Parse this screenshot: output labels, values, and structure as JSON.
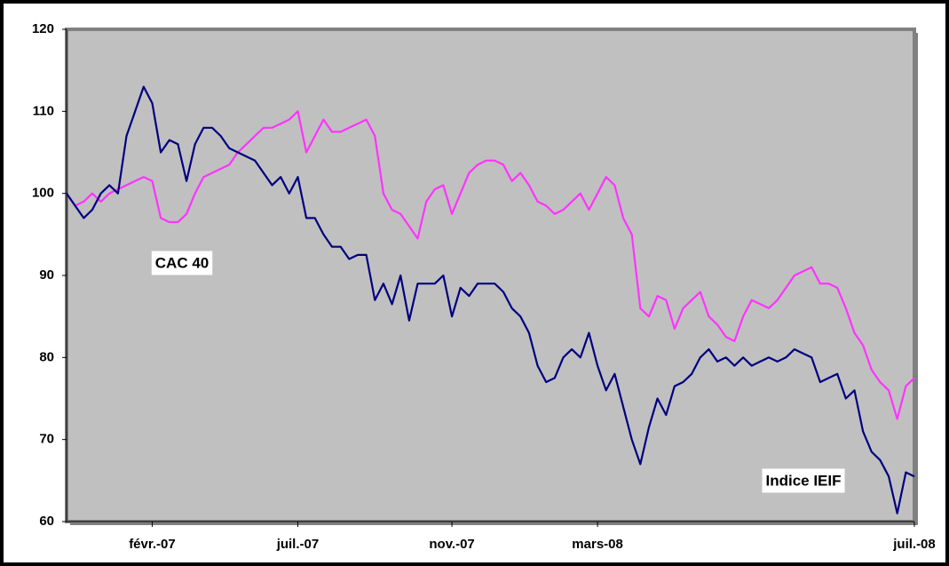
{
  "chart_data": {
    "type": "line",
    "categories": [
      null,
      null,
      null,
      null,
      null,
      null,
      null,
      null,
      null,
      null,
      "févr.-07",
      null,
      null,
      null,
      null,
      null,
      null,
      null,
      null,
      null,
      null,
      null,
      null,
      null,
      null,
      null,
      null,
      "juil.-07",
      null,
      null,
      null,
      null,
      null,
      null,
      null,
      null,
      null,
      null,
      null,
      null,
      null,
      null,
      null,
      null,
      null,
      "nov.-07",
      null,
      null,
      null,
      null,
      null,
      null,
      null,
      null,
      null,
      null,
      null,
      null,
      null,
      null,
      null,
      null,
      "mars-08",
      null,
      null,
      null,
      null,
      null,
      null,
      null,
      null,
      null,
      null,
      null,
      null,
      null,
      null,
      null,
      null,
      null,
      null,
      null,
      null,
      null,
      null,
      null,
      null,
      null,
      null,
      null,
      null,
      null,
      null,
      null,
      null,
      null,
      null,
      null,
      null,
      "juil.-08"
    ],
    "series": [
      {
        "name": "CAC 40",
        "color": "#ff33ff",
        "values": [
          100,
          98.5,
          99,
          100,
          99,
          100,
          100.5,
          101,
          101.5,
          102,
          101.5,
          97,
          96.5,
          96.5,
          97.5,
          100,
          102,
          102.5,
          103,
          103.5,
          105,
          106,
          107,
          108,
          108,
          108.5,
          109,
          110,
          105,
          107,
          109,
          107.5,
          107.5,
          108,
          108.5,
          109,
          107,
          100,
          98,
          97.5,
          96,
          94.5,
          99,
          100.5,
          101,
          97.5,
          100,
          102.5,
          103.5,
          104,
          104,
          103.5,
          101.5,
          102.5,
          101,
          99,
          98.5,
          97.5,
          98,
          99,
          100,
          98,
          100,
          102,
          101,
          97,
          95,
          86,
          85,
          87.5,
          87,
          83.5,
          86,
          87,
          88,
          85,
          84,
          82.5,
          82,
          85,
          87,
          86.5,
          86,
          87,
          88.5,
          90,
          90.5,
          91,
          89,
          89,
          88.5,
          86,
          83,
          81.5,
          78.5,
          77,
          76,
          72.5,
          76.5,
          77.5
        ]
      },
      {
        "name": "Indice IEIF",
        "color": "#000080",
        "values": [
          100,
          98.5,
          97,
          98,
          100,
          101,
          100,
          107,
          110,
          113,
          111,
          105,
          106.5,
          106,
          101.5,
          106,
          108,
          108,
          107,
          105.5,
          105,
          104.5,
          104,
          102.5,
          101,
          102,
          100,
          102,
          97,
          97,
          95,
          93.5,
          93.5,
          92,
          92.5,
          92.5,
          87,
          89,
          86.5,
          90,
          84.5,
          89,
          89,
          89,
          90,
          85,
          88.5,
          87.5,
          89,
          89,
          89,
          88,
          86,
          85,
          83,
          79,
          77,
          77.5,
          80,
          81,
          80,
          83,
          79,
          76,
          78,
          74,
          70,
          67,
          71.5,
          75,
          73,
          76.5,
          77,
          78,
          80,
          81,
          79.5,
          80,
          79,
          80,
          79,
          79.5,
          80,
          79.5,
          80,
          81,
          80.5,
          80,
          77,
          77.5,
          78,
          75,
          76,
          71,
          68.5,
          67.5,
          65.5,
          61,
          66,
          65.5
        ]
      }
    ],
    "ylim": [
      60,
      120
    ],
    "yticks": [
      60,
      70,
      80,
      90,
      100,
      110,
      120
    ],
    "grid": false
  }
}
